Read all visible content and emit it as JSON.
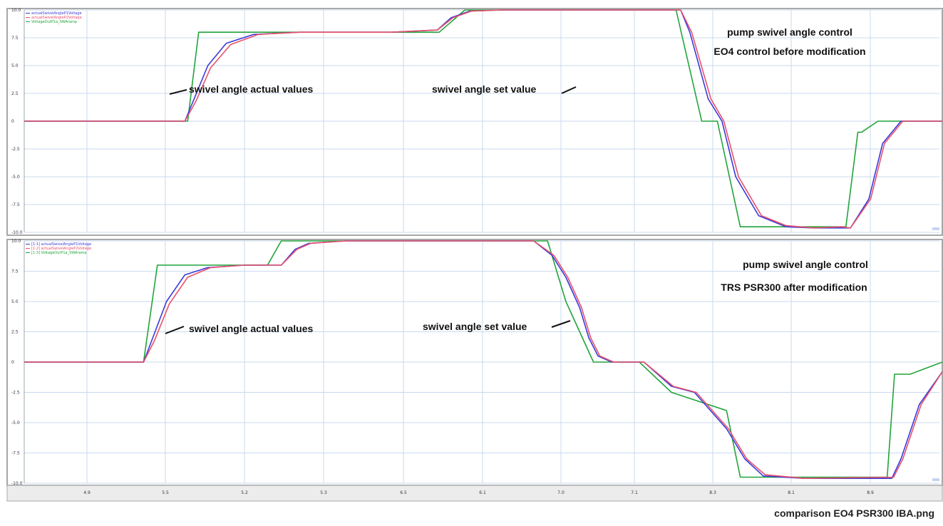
{
  "caption": "comparison EO4 PSR300 IBA.png",
  "colors": {
    "set_value": "#22a43a",
    "actual_1": "#3a3ad8",
    "actual_2": "#e8506a",
    "frame": "#a8a8a8",
    "grid": "#c9d9ee"
  },
  "chart_data": [
    {
      "type": "line",
      "ylim": [
        -10,
        10
      ],
      "yticks": [
        "10.0",
        "7.5",
        "5.0",
        "2.5",
        "0",
        "-2.5",
        "-5.0",
        "-7.5",
        "-10.0"
      ],
      "legend": [
        "actualSwivelAngleP1Voltage",
        "actualSwivelAngleP2Voltage",
        "VoltageOutP1a_SWAramp"
      ],
      "annotations": [
        "pump swivel angle control",
        "EO4 control before modification",
        "swivel angle actual values",
        "swivel angle set value"
      ],
      "series": [
        {
          "name": "VoltageOutP1a_SWAramp",
          "color_key": "set_value",
          "x": [
            0,
            17.8,
            19.0,
            45.2,
            48.0,
            71.0,
            73.8,
            75.5,
            78.0,
            80.5,
            88.2,
            89.5,
            90.8,
            91.2,
            93.0,
            100
          ],
          "y": [
            0,
            0,
            8.0,
            8.0,
            10.0,
            10.0,
            0,
            0,
            -9.5,
            -9.5,
            -9.5,
            -9.5,
            -1.0,
            -1.0,
            0,
            0
          ]
        },
        {
          "name": "actualSwivelAngleP1Voltage",
          "color_key": "actual_1",
          "x": [
            0,
            17.5,
            18.5,
            20.0,
            22.0,
            25.0,
            30.0,
            40.0,
            45.0,
            46.5,
            48.5,
            52.0,
            71.5,
            72.5,
            74.5,
            76.0,
            77.5,
            80.0,
            83.0,
            86.0,
            89.0,
            90.0,
            92.0,
            93.5,
            95.5,
            100
          ],
          "y": [
            0,
            0,
            2.0,
            5.0,
            7.0,
            7.8,
            8.0,
            8.0,
            8.2,
            9.3,
            9.9,
            10.0,
            10.0,
            8.0,
            2.0,
            0,
            -5.0,
            -8.5,
            -9.5,
            -9.6,
            -9.6,
            -9.6,
            -7.0,
            -2.0,
            0,
            0
          ]
        },
        {
          "name": "actualSwivelAngleP2Voltage",
          "color_key": "actual_2",
          "x": [
            0,
            17.5,
            18.7,
            20.3,
            22.5,
            25.5,
            30.0,
            40.0,
            45.0,
            46.7,
            48.7,
            52.0,
            71.5,
            72.7,
            74.8,
            76.2,
            77.8,
            80.3,
            83.0,
            86.0,
            89.0,
            90.0,
            92.2,
            93.7,
            95.7,
            100
          ],
          "y": [
            0,
            0,
            1.8,
            4.8,
            6.9,
            7.8,
            8.0,
            8.0,
            8.2,
            9.3,
            9.9,
            10.0,
            10.0,
            8.0,
            2.0,
            0,
            -5.0,
            -8.5,
            -9.4,
            -9.6,
            -9.5,
            -9.6,
            -7.0,
            -2.0,
            0,
            0
          ]
        }
      ]
    },
    {
      "type": "line",
      "ylim": [
        -10,
        10
      ],
      "yticks": [
        "10.0",
        "7.5",
        "5.0",
        "2.5",
        "0",
        "-2.5",
        "-5.0",
        "-7.5",
        "-10.0"
      ],
      "xticks": [
        "4.9",
        "5.5",
        "5.2",
        "5.3",
        "6.5",
        "6.1",
        "7.0",
        "7.1",
        "8.3",
        "8.1",
        "8.9"
      ],
      "legend": [
        "[1:1] actualSwivelAngleP1Voltage",
        "[1:2] actualSwivelAngleP2Voltage",
        "[1:3] VoltageOutP1a_SWAramp"
      ],
      "annotations": [
        "pump swivel angle control",
        "TRS PSR300 after modification",
        "swivel angle actual values",
        "swivel angle set value"
      ],
      "series": [
        {
          "name": "[1:3] VoltageOutP1a_SWAramp",
          "color_key": "set_value",
          "x": [
            0,
            13.0,
            14.5,
            26.5,
            28.0,
            57.0,
            59.0,
            62.0,
            67.0,
            70.5,
            76.5,
            78.0,
            92.0,
            94.0,
            94.8,
            96.5,
            100
          ],
          "y": [
            0,
            0,
            8.0,
            8.0,
            10.0,
            10.0,
            5.0,
            0,
            0,
            -2.5,
            -4.0,
            -9.5,
            -9.5,
            -9.5,
            -1.0,
            -1.0,
            0
          ]
        },
        {
          "name": "[1:1] actualSwivelAngleP1Voltage",
          "color_key": "actual_1",
          "x": [
            0,
            13.0,
            14.0,
            15.5,
            17.5,
            20.0,
            24.0,
            28.0,
            29.5,
            31.0,
            35.0,
            55.5,
            57.5,
            59.0,
            60.5,
            61.5,
            62.5,
            64.0,
            67.5,
            70.5,
            73.0,
            76.5,
            78.5,
            80.5,
            85.0,
            94.5,
            95.5,
            97.5,
            100
          ],
          "y": [
            0,
            0,
            2.0,
            5.0,
            7.2,
            7.8,
            8.0,
            8.0,
            9.3,
            9.8,
            10.0,
            10.0,
            8.8,
            7.0,
            4.5,
            2.0,
            0.5,
            0,
            0,
            -2.0,
            -2.5,
            -5.5,
            -8.0,
            -9.4,
            -9.6,
            -9.6,
            -8.0,
            -3.5,
            -0.8
          ]
        },
        {
          "name": "[1:2] actualSwivelAngleP2Voltage",
          "color_key": "actual_2",
          "x": [
            0,
            13.0,
            14.2,
            15.8,
            17.8,
            20.3,
            24.0,
            28.0,
            29.7,
            31.2,
            35.0,
            55.5,
            57.7,
            59.2,
            60.7,
            61.7,
            62.7,
            64.2,
            67.5,
            70.7,
            73.2,
            76.7,
            78.7,
            80.7,
            85.0,
            94.7,
            95.7,
            97.7,
            100
          ],
          "y": [
            0,
            0,
            1.8,
            4.8,
            7.0,
            7.8,
            8.0,
            8.0,
            9.3,
            9.8,
            10.0,
            10.0,
            8.8,
            7.0,
            4.5,
            2.0,
            0.5,
            0,
            0,
            -2.0,
            -2.5,
            -5.5,
            -8.0,
            -9.3,
            -9.6,
            -9.5,
            -8.0,
            -3.5,
            -0.8
          ]
        }
      ]
    }
  ]
}
